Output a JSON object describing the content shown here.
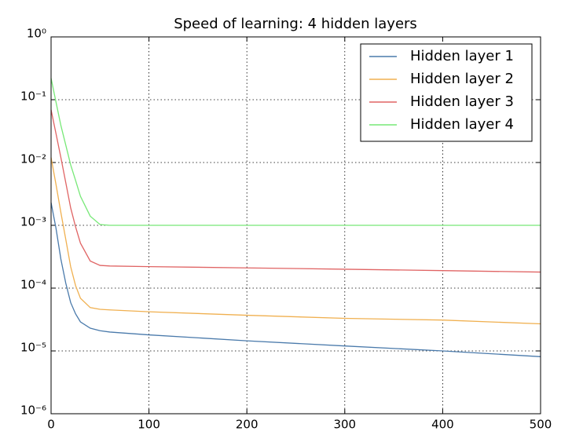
{
  "chart_data": {
    "type": "line",
    "title": "Speed of learning: 4 hidden layers",
    "x": [
      0,
      5,
      10,
      15,
      20,
      25,
      30,
      40,
      50,
      60,
      100,
      200,
      300,
      400,
      500
    ],
    "series": [
      {
        "name": "Hidden layer 1",
        "color": "#4a7aab",
        "values": [
          0.0023,
          0.0009,
          0.00029,
          0.00012,
          5.9e-05,
          3.9e-05,
          2.9e-05,
          2.3e-05,
          2.1e-05,
          2e-05,
          1.8e-05,
          1.45e-05,
          1.2e-05,
          1e-05,
          8.1e-06
        ]
      },
      {
        "name": "Hidden layer 2",
        "color": "#f0b050",
        "values": [
          0.012,
          0.0045,
          0.0016,
          0.0006,
          0.00022,
          0.00011,
          6.9e-05,
          4.9e-05,
          4.6e-05,
          4.5e-05,
          4.2e-05,
          3.7e-05,
          3.3e-05,
          3.1e-05,
          2.7e-05
        ]
      },
      {
        "name": "Hidden layer 3",
        "color": "#e06464",
        "values": [
          0.069,
          0.029,
          0.012,
          0.0048,
          0.0019,
          0.00095,
          0.00052,
          0.00027,
          0.00023,
          0.000225,
          0.00022,
          0.00021,
          0.0002,
          0.00019,
          0.00018
        ]
      },
      {
        "name": "Hidden layer 4",
        "color": "#77e877",
        "values": [
          0.22,
          0.092,
          0.039,
          0.019,
          0.0092,
          0.0052,
          0.0029,
          0.0014,
          0.00103,
          0.001,
          0.001,
          0.001,
          0.001,
          0.001,
          0.001
        ]
      }
    ],
    "xlim": [
      0,
      500
    ],
    "xticks": [
      0,
      100,
      200,
      300,
      400,
      500
    ],
    "ylim": [
      1e-06,
      1
    ],
    "log_y": true,
    "yticks": [
      {
        "value": 1e-06,
        "label": "10⁻⁶"
      },
      {
        "value": 1e-05,
        "label": "10⁻⁵"
      },
      {
        "value": 0.0001,
        "label": "10⁻⁴"
      },
      {
        "value": 0.001,
        "label": "10⁻³"
      },
      {
        "value": 0.01,
        "label": "10⁻²"
      },
      {
        "value": 0.1,
        "label": "10⁻¹"
      },
      {
        "value": 1,
        "label": "10⁰"
      }
    ],
    "grid": true,
    "legend": "upper right"
  }
}
